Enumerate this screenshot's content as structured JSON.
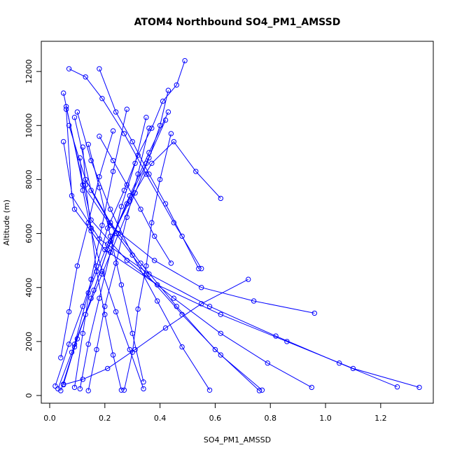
{
  "chart_data": {
    "type": "scatter",
    "title": "ATOM4 Northbound SO4_PM1_AMSSD",
    "xlabel": "SO4_PM1_AMSSD",
    "ylabel": "Altitude (m)",
    "xlim": [
      0,
      1.4
    ],
    "ylim": [
      0,
      12800
    ],
    "xticks": [
      0.0,
      0.2,
      0.4,
      0.6,
      0.8,
      1.0,
      1.2
    ],
    "xtick_labels": [
      "0.0",
      "0.2",
      "0.4",
      "0.6",
      "0.8",
      "1.0",
      "1.2"
    ],
    "yticks": [
      0,
      2000,
      4000,
      6000,
      8000,
      10000,
      12000
    ],
    "ytick_labels": [
      "0",
      "2000",
      "4000",
      "6000",
      "8000",
      "10000",
      "12000"
    ],
    "color": "#0000ff",
    "point_style": "open-circle",
    "lines_connected": true,
    "grid": false,
    "series": [
      {
        "x": [
          0.02,
          0.07,
          0.12,
          0.17,
          0.21,
          0.27,
          0.32,
          0.37,
          0.41,
          0.46,
          0.49
        ],
        "y": [
          350,
          1900,
          3300,
          4800,
          6200,
          7600,
          8900,
          9900,
          10900,
          11500,
          12400
        ]
      },
      {
        "x": [
          0.03,
          0.08,
          0.13,
          0.19,
          0.25,
          0.31,
          0.36,
          0.4,
          0.43
        ],
        "y": [
          250,
          1600,
          3000,
          4500,
          6000,
          7500,
          8800,
          10000,
          11300
        ]
      },
      {
        "x": [
          0.04,
          0.09,
          0.15,
          0.21,
          0.28,
          0.35,
          0.42
        ],
        "y": [
          180,
          1800,
          3600,
          5400,
          7100,
          8600,
          10200
        ]
      },
      {
        "x": [
          0.05,
          0.1,
          0.16,
          0.22,
          0.29,
          0.36,
          0.43
        ],
        "y": [
          420,
          2100,
          3900,
          5700,
          7400,
          9000,
          10500
        ]
      },
      {
        "x": [
          1.34,
          1.1,
          0.86,
          0.62,
          0.39,
          0.2,
          0.09,
          0.05
        ],
        "y": [
          300,
          1000,
          2000,
          3000,
          4100,
          5400,
          6900,
          9400
        ]
      },
      {
        "x": [
          1.26,
          1.05,
          0.82,
          0.58,
          0.36,
          0.18,
          0.08,
          0.06
        ],
        "y": [
          320,
          1200,
          2200,
          3300,
          4500,
          5800,
          7400,
          10600
        ]
      },
      {
        "x": [
          0.95,
          0.79,
          0.62,
          0.45,
          0.28,
          0.15,
          0.06
        ],
        "y": [
          300,
          1200,
          2300,
          3600,
          5000,
          6500,
          10700
        ]
      },
      {
        "x": [
          0.96,
          0.74,
          0.55,
          0.38,
          0.22,
          0.12,
          0.05
        ],
        "y": [
          3050,
          3500,
          4000,
          5000,
          6300,
          7800,
          11200
        ]
      },
      {
        "x": [
          0.77,
          0.62,
          0.48,
          0.35,
          0.24,
          0.15,
          0.09
        ],
        "y": [
          200,
          1500,
          3000,
          4500,
          6000,
          7600,
          10300
        ]
      },
      {
        "x": [
          0.76,
          0.6,
          0.46,
          0.33,
          0.22,
          0.13,
          0.07
        ],
        "y": [
          180,
          1700,
          3300,
          4900,
          6400,
          8000,
          10000
        ]
      },
      {
        "x": [
          0.58,
          0.48,
          0.39,
          0.3,
          0.22,
          0.15,
          0.1
        ],
        "y": [
          200,
          1800,
          3500,
          5200,
          6900,
          8700,
          10500
        ]
      },
      {
        "x": [
          0.72,
          0.55,
          0.42,
          0.31,
          0.21,
          0.12,
          0.05
        ],
        "y": [
          4300,
          3400,
          2500,
          1700,
          1000,
          600,
          400
        ]
      },
      {
        "x": [
          0.62,
          0.53,
          0.45,
          0.37,
          0.29,
          0.21,
          0.14,
          0.09
        ],
        "y": [
          7300,
          8300,
          9400,
          8600,
          7200,
          5600,
          3800,
          1900
        ]
      },
      {
        "x": [
          0.55,
          0.45,
          0.35,
          0.27,
          0.19,
          0.13,
          0.07
        ],
        "y": [
          4700,
          6400,
          8200,
          9700,
          11000,
          11800,
          12100
        ]
      },
      {
        "x": [
          0.54,
          0.48,
          0.42,
          0.36,
          0.3,
          0.24,
          0.18
        ],
        "y": [
          4700,
          5900,
          7100,
          8200,
          9400,
          10500,
          12100
        ]
      },
      {
        "x": [
          0.34,
          0.29,
          0.24,
          0.19,
          0.15,
          0.12,
          0.11
        ],
        "y": [
          250,
          1700,
          3100,
          4600,
          6100,
          7600,
          8800
        ]
      },
      {
        "x": [
          0.26,
          0.23,
          0.2,
          0.17,
          0.15,
          0.13,
          0.12
        ],
        "y": [
          200,
          1500,
          3000,
          4600,
          6200,
          7800,
          9200
        ]
      },
      {
        "x": [
          0.27,
          0.3,
          0.32,
          0.35,
          0.37,
          0.4,
          0.44
        ],
        "y": [
          200,
          1600,
          3200,
          4800,
          6400,
          8000,
          9700
        ]
      },
      {
        "x": [
          0.14,
          0.17,
          0.2,
          0.24,
          0.28,
          0.32,
          0.36
        ],
        "y": [
          180,
          1700,
          3300,
          4900,
          6600,
          8200,
          9900
        ]
      },
      {
        "x": [
          0.11,
          0.14,
          0.18,
          0.22,
          0.26,
          0.31,
          0.35
        ],
        "y": [
          250,
          1900,
          3600,
          5300,
          7000,
          8600,
          10300
        ]
      },
      {
        "x": [
          0.09,
          0.12,
          0.15,
          0.19,
          0.23,
          0.28
        ],
        "y": [
          300,
          2300,
          4300,
          6300,
          8300,
          10600
        ]
      },
      {
        "x": [
          0.04,
          0.07,
          0.1,
          0.14,
          0.18,
          0.23
        ],
        "y": [
          1400,
          3100,
          4800,
          6400,
          8100,
          9800
        ]
      },
      {
        "x": [
          0.34,
          0.3,
          0.26,
          0.22,
          0.18,
          0.14
        ],
        "y": [
          500,
          2300,
          4100,
          5900,
          7700,
          9300
        ]
      },
      {
        "x": [
          0.44,
          0.38,
          0.33,
          0.28,
          0.23,
          0.18
        ],
        "y": [
          4900,
          5900,
          6900,
          7800,
          8700,
          9600
        ]
      }
    ]
  }
}
